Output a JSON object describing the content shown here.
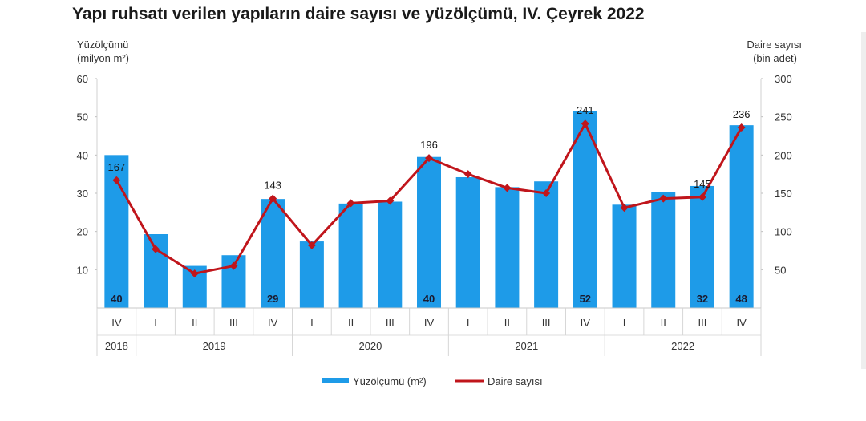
{
  "chart_data": {
    "type": "bar",
    "title": "Yapı ruhsatı verilen yapıların daire sayısı ve yüzölçümü, IV. Çeyrek 2022",
    "left_axis_label": [
      "Yüzölçümü",
      "(milyon m²)"
    ],
    "right_axis_label": [
      "Daire sayısı",
      "(bin adet)"
    ],
    "left_ylim": [
      0,
      60
    ],
    "left_ticks": [
      10,
      20,
      30,
      40,
      50,
      60
    ],
    "right_ylim": [
      0,
      300
    ],
    "right_ticks": [
      50,
      100,
      150,
      200,
      250,
      300
    ],
    "categories": [
      "IV",
      "I",
      "II",
      "III",
      "IV",
      "I",
      "II",
      "III",
      "IV",
      "I",
      "II",
      "III",
      "IV",
      "I",
      "II",
      "III",
      "IV"
    ],
    "years": [
      {
        "label": "2018",
        "span": 1
      },
      {
        "label": "2019",
        "span": 4
      },
      {
        "label": "2020",
        "span": 4
      },
      {
        "label": "2021",
        "span": 4
      },
      {
        "label": "2022",
        "span": 4
      }
    ],
    "series": [
      {
        "name": "Yüzölçümü (m²)",
        "type": "bar",
        "axis": "left",
        "color": "#1e9be8",
        "values": [
          40,
          19.3,
          11,
          13.8,
          28.5,
          17.4,
          27.3,
          27.8,
          39.5,
          34.2,
          31.6,
          33.1,
          51.6,
          27,
          30.4,
          31.9,
          47.8
        ],
        "labels": [
          "40",
          "",
          "",
          "",
          "29",
          "",
          "",
          "",
          "40",
          "",
          "",
          "",
          "52",
          "",
          "",
          "32",
          "48"
        ]
      },
      {
        "name": "Daire sayısı",
        "type": "line",
        "axis": "right",
        "color": "#c0151b",
        "values": [
          167,
          77,
          45,
          55,
          143,
          82,
          137,
          140,
          196,
          175,
          157,
          150,
          241,
          131,
          143,
          145,
          236
        ],
        "labels": [
          "167",
          "",
          "",
          "",
          "143",
          "",
          "",
          "",
          "196",
          "",
          "",
          "",
          "241",
          "",
          "",
          "145",
          "236"
        ]
      }
    ],
    "legend_position": "bottom-center",
    "grid": false
  }
}
